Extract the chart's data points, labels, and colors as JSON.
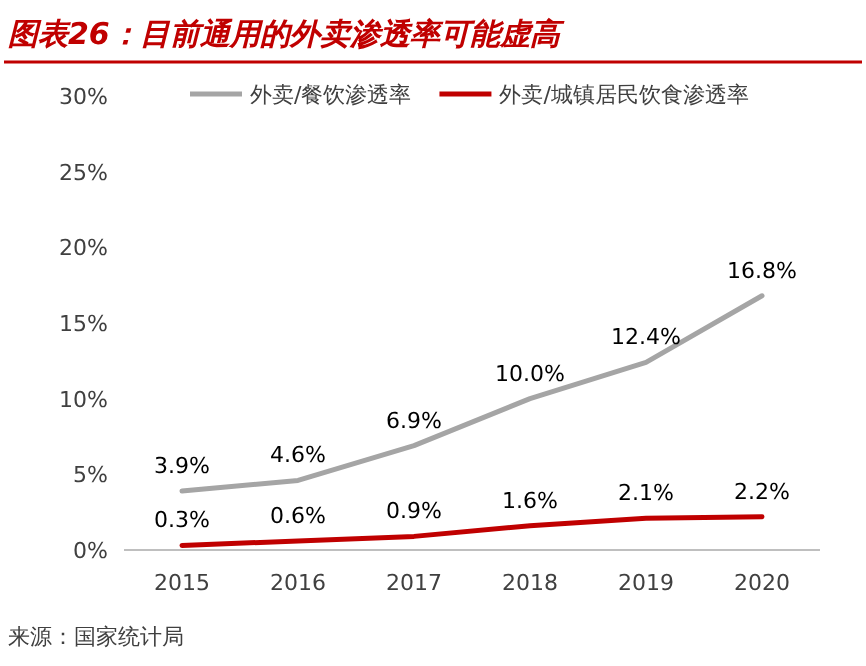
{
  "chart_data": {
    "type": "line",
    "title": "图表26：目前通用的外卖渗透率可能虚高",
    "categories": [
      "2015",
      "2016",
      "2017",
      "2018",
      "2019",
      "2020"
    ],
    "series": [
      {
        "name": "外卖/餐饮渗透率",
        "color": "#a5a5a5",
        "values": [
          3.9,
          4.6,
          6.9,
          10.0,
          12.4,
          16.8
        ],
        "value_labels": [
          "3.9%",
          "4.6%",
          "6.9%",
          "10.0%",
          "12.4%",
          "16.8%"
        ]
      },
      {
        "name": "外卖/城镇居民饮食渗透率",
        "color": "#c00000",
        "values": [
          0.3,
          0.6,
          0.9,
          1.6,
          2.1,
          2.2
        ],
        "value_labels": [
          "0.3%",
          "0.6%",
          "0.9%",
          "1.6%",
          "2.1%",
          "2.2%"
        ]
      }
    ],
    "ylim": [
      0,
      30
    ],
    "yticks": [
      {
        "value": 0,
        "label": "0%"
      },
      {
        "value": 5,
        "label": "5%"
      },
      {
        "value": 10,
        "label": "10%"
      },
      {
        "value": 15,
        "label": "15%"
      },
      {
        "value": 20,
        "label": "20%"
      },
      {
        "value": 25,
        "label": "25%"
      },
      {
        "value": 30,
        "label": "30%"
      }
    ],
    "grid": false,
    "legend": "top",
    "marker": "none",
    "line_style": "solid",
    "annotations": [
      "来源：国家统计局"
    ]
  }
}
